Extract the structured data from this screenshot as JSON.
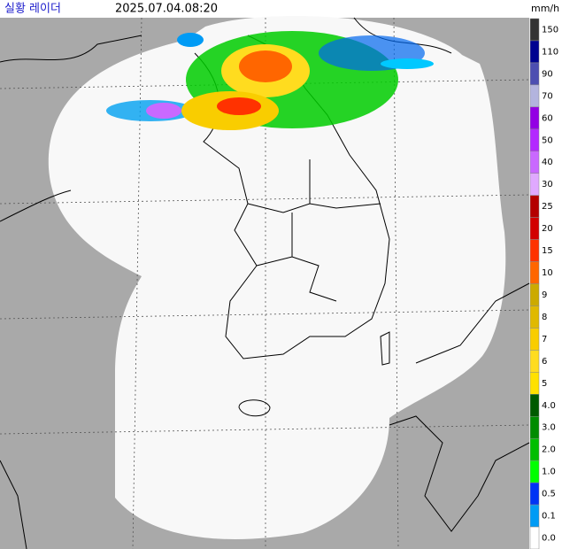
{
  "header": {
    "title": "실황 레이더",
    "time": "2025.07.04.08:20"
  },
  "legend": {
    "unit": "mm/h",
    "items": [
      {
        "label": "150",
        "color": "#333333"
      },
      {
        "label": "110",
        "color": "#000390"
      },
      {
        "label": "90",
        "color": "#4c4eb1"
      },
      {
        "label": "70",
        "color": "#b3b4de"
      },
      {
        "label": "60",
        "color": "#9300e4"
      },
      {
        "label": "50",
        "color": "#b329ff"
      },
      {
        "label": "40",
        "color": "#c969ff"
      },
      {
        "label": "30",
        "color": "#e0a9ff"
      },
      {
        "label": "25",
        "color": "#b40000"
      },
      {
        "label": "20",
        "color": "#d20000"
      },
      {
        "label": "15",
        "color": "#ff3200"
      },
      {
        "label": "10",
        "color": "#ff6600"
      },
      {
        "label": "9",
        "color": "#ccaa00"
      },
      {
        "label": "8",
        "color": "#e0b900"
      },
      {
        "label": "7",
        "color": "#f9cd00"
      },
      {
        "label": "6",
        "color": "#ffdc1f"
      },
      {
        "label": "5",
        "color": "#ffe100"
      },
      {
        "label": "4.0",
        "color": "#005a00"
      },
      {
        "label": "3.0",
        "color": "#008c00"
      },
      {
        "label": "2.0",
        "color": "#00be00"
      },
      {
        "label": "1.0",
        "color": "#00ff00"
      },
      {
        "label": "0.5",
        "color": "#0033f5"
      },
      {
        "label": "0.1",
        "color": "#009bf5"
      },
      {
        "label": "0.0",
        "color": "#ffffff"
      }
    ]
  }
}
